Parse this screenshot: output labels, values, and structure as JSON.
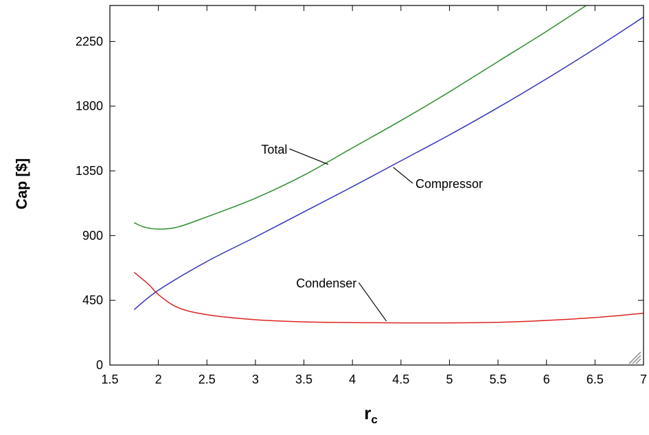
{
  "chart_data": {
    "type": "line",
    "title": "",
    "xlabel_main": "r",
    "xlabel_sub": "c",
    "ylabel": "Cap [$]",
    "xlim": [
      1.5,
      7
    ],
    "ylim": [
      0,
      2500
    ],
    "x_ticks": [
      1.5,
      2,
      2.5,
      3,
      3.5,
      4,
      4.5,
      5,
      5.5,
      6,
      6.5,
      7
    ],
    "x_tick_labels": [
      "1.5",
      "2",
      "2.5",
      "3",
      "3.5",
      "4",
      "4.5",
      "5",
      "5.5",
      "6",
      "6.5",
      "7"
    ],
    "y_ticks": [
      0,
      450,
      900,
      1350,
      1800,
      2250
    ],
    "y_tick_labels": [
      "0",
      "450",
      "900",
      "1350",
      "1800",
      "2250"
    ],
    "grid": false,
    "legend": "none",
    "series": [
      {
        "name": "Total",
        "color": "#2e8b2e",
        "x": [
          1.75,
          1.85,
          2.0,
          2.2,
          2.5,
          3.0,
          3.5,
          4.0,
          4.5,
          5.0,
          5.5,
          6.0,
          6.5,
          6.75
        ],
        "y": [
          990,
          960,
          945,
          960,
          1030,
          1160,
          1320,
          1510,
          1700,
          1900,
          2110,
          2320,
          2540,
          2650
        ]
      },
      {
        "name": "Compressor",
        "color": "#3333bb",
        "x": [
          1.75,
          2.0,
          2.5,
          3.0,
          3.5,
          4.0,
          4.5,
          5.0,
          5.5,
          6.0,
          6.5,
          7.0
        ],
        "y": [
          385,
          520,
          720,
          890,
          1065,
          1240,
          1420,
          1600,
          1790,
          1990,
          2200,
          2420
        ]
      },
      {
        "name": "Condenser",
        "color": "#dd2222",
        "x": [
          1.75,
          1.9,
          2.0,
          2.2,
          2.5,
          3.0,
          3.5,
          4.0,
          4.5,
          5.0,
          5.5,
          6.0,
          6.5,
          7.0
        ],
        "y": [
          645,
          560,
          490,
          400,
          350,
          315,
          300,
          295,
          293,
          293,
          297,
          310,
          330,
          360
        ]
      }
    ],
    "annotations": [
      {
        "text": "Total",
        "label_x": 3.06,
        "label_y": 1470,
        "point_x": 3.75,
        "point_y": 1395
      },
      {
        "text": "Compressor",
        "label_x": 4.65,
        "label_y": 1230,
        "point_x": 4.42,
        "point_y": 1375
      },
      {
        "text": "Condenser",
        "label_x": 3.42,
        "label_y": 540,
        "point_x": 4.35,
        "point_y": 305
      }
    ]
  }
}
